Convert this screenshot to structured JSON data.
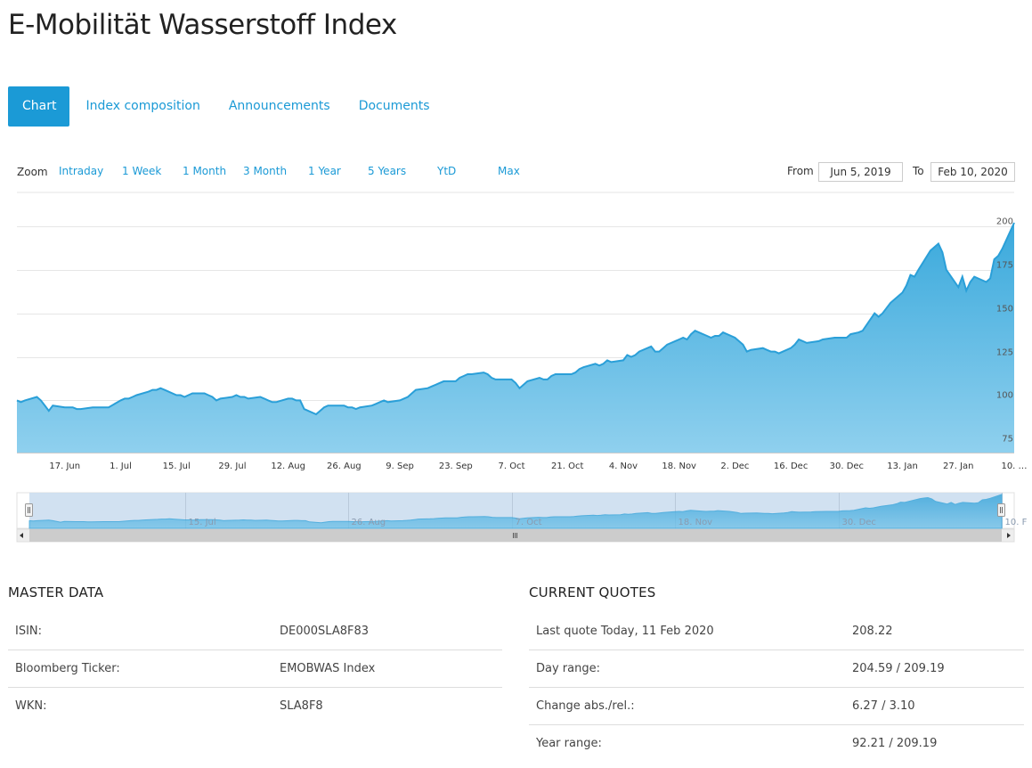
{
  "page": {
    "title": "E-Mobilität Wasserstoff Index"
  },
  "tabs": [
    {
      "label": "Chart",
      "active": true
    },
    {
      "label": "Index composition",
      "active": false
    },
    {
      "label": "Announcements",
      "active": false
    },
    {
      "label": "Documents",
      "active": false
    }
  ],
  "zoom": {
    "label": "Zoom",
    "buttons": [
      "Intraday",
      "1 Week",
      "1 Month",
      "3 Month",
      "1 Year",
      "5 Years",
      "YtD",
      "Max"
    ]
  },
  "range": {
    "from_label": "From",
    "from_value": "Jun 5, 2019",
    "to_label": "To",
    "to_value": "Feb 10, 2020"
  },
  "colors": {
    "accent": "#1b9ad6",
    "line": "#2a9fd8",
    "area_top": "#3aa9dc",
    "area_bottom": "#8fd0ee"
  },
  "chart_data": {
    "type": "area",
    "title": "",
    "xlabel": "",
    "ylabel": "",
    "ylim": [
      70,
      202
    ],
    "xlim": [
      "2019-06-05",
      "2020-02-10"
    ],
    "grid": true,
    "y_axis_position": "right",
    "y_ticks": [
      75,
      100,
      125,
      150,
      175,
      200
    ],
    "x_ticks": [
      {
        "label": "17. Jun",
        "date": "2019-06-17"
      },
      {
        "label": "1. Jul",
        "date": "2019-07-01"
      },
      {
        "label": "15. Jul",
        "date": "2019-07-15"
      },
      {
        "label": "29. Jul",
        "date": "2019-07-29"
      },
      {
        "label": "12. Aug",
        "date": "2019-08-12"
      },
      {
        "label": "26. Aug",
        "date": "2019-08-26"
      },
      {
        "label": "9. Sep",
        "date": "2019-09-09"
      },
      {
        "label": "23. Sep",
        "date": "2019-09-23"
      },
      {
        "label": "7. Oct",
        "date": "2019-10-07"
      },
      {
        "label": "21. Oct",
        "date": "2019-10-21"
      },
      {
        "label": "4. Nov",
        "date": "2019-11-04"
      },
      {
        "label": "18. Nov",
        "date": "2019-11-18"
      },
      {
        "label": "2. Dec",
        "date": "2019-12-02"
      },
      {
        "label": "16. Dec",
        "date": "2019-12-16"
      },
      {
        "label": "30. Dec",
        "date": "2019-12-30"
      },
      {
        "label": "13. Jan",
        "date": "2020-01-13"
      },
      {
        "label": "27. Jan",
        "date": "2020-01-27"
      },
      {
        "label": "10. …",
        "date": "2020-02-10"
      }
    ],
    "navigator_labels": [
      {
        "label": "15. Jul",
        "date": "2019-07-15"
      },
      {
        "label": "26. Aug",
        "date": "2019-08-26"
      },
      {
        "label": "7. Oct",
        "date": "2019-10-07"
      },
      {
        "label": "18. Nov",
        "date": "2019-11-18"
      },
      {
        "label": "30. Dec",
        "date": "2019-12-30"
      },
      {
        "label": "10. F",
        "date": "2020-02-10"
      }
    ],
    "series": [
      {
        "points": [
          [
            "2019-06-05",
            100
          ],
          [
            "2019-06-06",
            99
          ],
          [
            "2019-06-07",
            100
          ],
          [
            "2019-06-10",
            102
          ],
          [
            "2019-06-11",
            100
          ],
          [
            "2019-06-12",
            97
          ],
          [
            "2019-06-13",
            94
          ],
          [
            "2019-06-14",
            97
          ],
          [
            "2019-06-17",
            96
          ],
          [
            "2019-06-18",
            96
          ],
          [
            "2019-06-19",
            96
          ],
          [
            "2019-06-20",
            95
          ],
          [
            "2019-06-21",
            95
          ],
          [
            "2019-06-24",
            96
          ],
          [
            "2019-06-25",
            96
          ],
          [
            "2019-06-26",
            96
          ],
          [
            "2019-06-27",
            96
          ],
          [
            "2019-06-28",
            96
          ],
          [
            "2019-07-01",
            100
          ],
          [
            "2019-07-02",
            101
          ],
          [
            "2019-07-03",
            101
          ],
          [
            "2019-07-04",
            102
          ],
          [
            "2019-07-05",
            103
          ],
          [
            "2019-07-08",
            105
          ],
          [
            "2019-07-09",
            106
          ],
          [
            "2019-07-10",
            106
          ],
          [
            "2019-07-11",
            107
          ],
          [
            "2019-07-12",
            106
          ],
          [
            "2019-07-15",
            103
          ],
          [
            "2019-07-16",
            103
          ],
          [
            "2019-07-17",
            102
          ],
          [
            "2019-07-18",
            103
          ],
          [
            "2019-07-19",
            104
          ],
          [
            "2019-07-22",
            104
          ],
          [
            "2019-07-23",
            103
          ],
          [
            "2019-07-24",
            102
          ],
          [
            "2019-07-25",
            100
          ],
          [
            "2019-07-26",
            101
          ],
          [
            "2019-07-29",
            102
          ],
          [
            "2019-07-30",
            103
          ],
          [
            "2019-07-31",
            102
          ],
          [
            "2019-08-01",
            102
          ],
          [
            "2019-08-02",
            101
          ],
          [
            "2019-08-05",
            102
          ],
          [
            "2019-08-06",
            101
          ],
          [
            "2019-08-07",
            100
          ],
          [
            "2019-08-08",
            99
          ],
          [
            "2019-08-09",
            99
          ],
          [
            "2019-08-12",
            101
          ],
          [
            "2019-08-13",
            101
          ],
          [
            "2019-08-14",
            100
          ],
          [
            "2019-08-15",
            100
          ],
          [
            "2019-08-16",
            95
          ],
          [
            "2019-08-19",
            92
          ],
          [
            "2019-08-20",
            94
          ],
          [
            "2019-08-21",
            96
          ],
          [
            "2019-08-22",
            97
          ],
          [
            "2019-08-23",
            97
          ],
          [
            "2019-08-26",
            97
          ],
          [
            "2019-08-27",
            96
          ],
          [
            "2019-08-28",
            96
          ],
          [
            "2019-08-29",
            95
          ],
          [
            "2019-08-30",
            96
          ],
          [
            "2019-09-02",
            97
          ],
          [
            "2019-09-03",
            98
          ],
          [
            "2019-09-04",
            99
          ],
          [
            "2019-09-05",
            100
          ],
          [
            "2019-09-06",
            99
          ],
          [
            "2019-09-09",
            100
          ],
          [
            "2019-09-10",
            101
          ],
          [
            "2019-09-11",
            102
          ],
          [
            "2019-09-12",
            104
          ],
          [
            "2019-09-13",
            106
          ],
          [
            "2019-09-16",
            107
          ],
          [
            "2019-09-17",
            108
          ],
          [
            "2019-09-18",
            109
          ],
          [
            "2019-09-19",
            110
          ],
          [
            "2019-09-20",
            111
          ],
          [
            "2019-09-23",
            111
          ],
          [
            "2019-09-24",
            113
          ],
          [
            "2019-09-25",
            114
          ],
          [
            "2019-09-26",
            115
          ],
          [
            "2019-09-27",
            115
          ],
          [
            "2019-09-30",
            116
          ],
          [
            "2019-10-01",
            115
          ],
          [
            "2019-10-02",
            113
          ],
          [
            "2019-10-03",
            112
          ],
          [
            "2019-10-04",
            112
          ],
          [
            "2019-10-07",
            112
          ],
          [
            "2019-10-08",
            110
          ],
          [
            "2019-10-09",
            107
          ],
          [
            "2019-10-10",
            109
          ],
          [
            "2019-10-11",
            111
          ],
          [
            "2019-10-14",
            113
          ],
          [
            "2019-10-15",
            112
          ],
          [
            "2019-10-16",
            112
          ],
          [
            "2019-10-17",
            114
          ],
          [
            "2019-10-18",
            115
          ],
          [
            "2019-10-21",
            115
          ],
          [
            "2019-10-22",
            115
          ],
          [
            "2019-10-23",
            116
          ],
          [
            "2019-10-24",
            118
          ],
          [
            "2019-10-25",
            119
          ],
          [
            "2019-10-28",
            121
          ],
          [
            "2019-10-29",
            120
          ],
          [
            "2019-10-30",
            121
          ],
          [
            "2019-10-31",
            123
          ],
          [
            "2019-11-01",
            122
          ],
          [
            "2019-11-04",
            123
          ],
          [
            "2019-11-05",
            126
          ],
          [
            "2019-11-06",
            125
          ],
          [
            "2019-11-07",
            126
          ],
          [
            "2019-11-08",
            128
          ],
          [
            "2019-11-11",
            131
          ],
          [
            "2019-11-12",
            128
          ],
          [
            "2019-11-13",
            128
          ],
          [
            "2019-11-14",
            130
          ],
          [
            "2019-11-15",
            132
          ],
          [
            "2019-11-18",
            135
          ],
          [
            "2019-11-19",
            136
          ],
          [
            "2019-11-20",
            135
          ],
          [
            "2019-11-21",
            138
          ],
          [
            "2019-11-22",
            140
          ],
          [
            "2019-11-25",
            137
          ],
          [
            "2019-11-26",
            136
          ],
          [
            "2019-11-27",
            137
          ],
          [
            "2019-11-28",
            137
          ],
          [
            "2019-11-29",
            139
          ],
          [
            "2019-12-02",
            136
          ],
          [
            "2019-12-03",
            134
          ],
          [
            "2019-12-04",
            132
          ],
          [
            "2019-12-05",
            128
          ],
          [
            "2019-12-06",
            129
          ],
          [
            "2019-12-09",
            130
          ],
          [
            "2019-12-10",
            129
          ],
          [
            "2019-12-11",
            128
          ],
          [
            "2019-12-12",
            128
          ],
          [
            "2019-12-13",
            127
          ],
          [
            "2019-12-16",
            130
          ],
          [
            "2019-12-17",
            132
          ],
          [
            "2019-12-18",
            135
          ],
          [
            "2019-12-19",
            134
          ],
          [
            "2019-12-20",
            133
          ],
          [
            "2019-12-23",
            134
          ],
          [
            "2019-12-24",
            135
          ],
          [
            "2019-12-27",
            136
          ],
          [
            "2019-12-30",
            136
          ],
          [
            "2019-12-31",
            138
          ],
          [
            "2020-01-02",
            139
          ],
          [
            "2020-01-03",
            140
          ],
          [
            "2020-01-06",
            150
          ],
          [
            "2020-01-07",
            148
          ],
          [
            "2020-01-08",
            150
          ],
          [
            "2020-01-09",
            153
          ],
          [
            "2020-01-10",
            156
          ],
          [
            "2020-01-13",
            162
          ],
          [
            "2020-01-14",
            166
          ],
          [
            "2020-01-15",
            172
          ],
          [
            "2020-01-16",
            171
          ],
          [
            "2020-01-17",
            175
          ],
          [
            "2020-01-20",
            186
          ],
          [
            "2020-01-21",
            188
          ],
          [
            "2020-01-22",
            190
          ],
          [
            "2020-01-23",
            185
          ],
          [
            "2020-01-24",
            175
          ],
          [
            "2020-01-27",
            165
          ],
          [
            "2020-01-28",
            171
          ],
          [
            "2020-01-29",
            163
          ],
          [
            "2020-01-30",
            168
          ],
          [
            "2020-01-31",
            171
          ],
          [
            "2020-02-03",
            168
          ],
          [
            "2020-02-04",
            170
          ],
          [
            "2020-02-05",
            181
          ],
          [
            "2020-02-06",
            183
          ],
          [
            "2020-02-07",
            187
          ],
          [
            "2020-02-10",
            202
          ]
        ]
      }
    ]
  },
  "master_data": {
    "title": "MASTER DATA",
    "rows": [
      {
        "label": "ISIN:",
        "value": "DE000SLA8F83"
      },
      {
        "label": "Bloomberg Ticker:",
        "value": "EMOBWAS Index"
      },
      {
        "label": "WKN:",
        "value": "SLA8F8"
      }
    ]
  },
  "current_quotes": {
    "title": "CURRENT QUOTES",
    "rows": [
      {
        "label": "Last quote Today, 11 Feb 2020",
        "value": "208.22"
      },
      {
        "label": "Day range:",
        "value": "204.59 / 209.19"
      },
      {
        "label": "Change abs./rel.:",
        "value": "6.27 / 3.10"
      },
      {
        "label": "Year range:",
        "value": "92.21 / 209.19"
      }
    ]
  }
}
